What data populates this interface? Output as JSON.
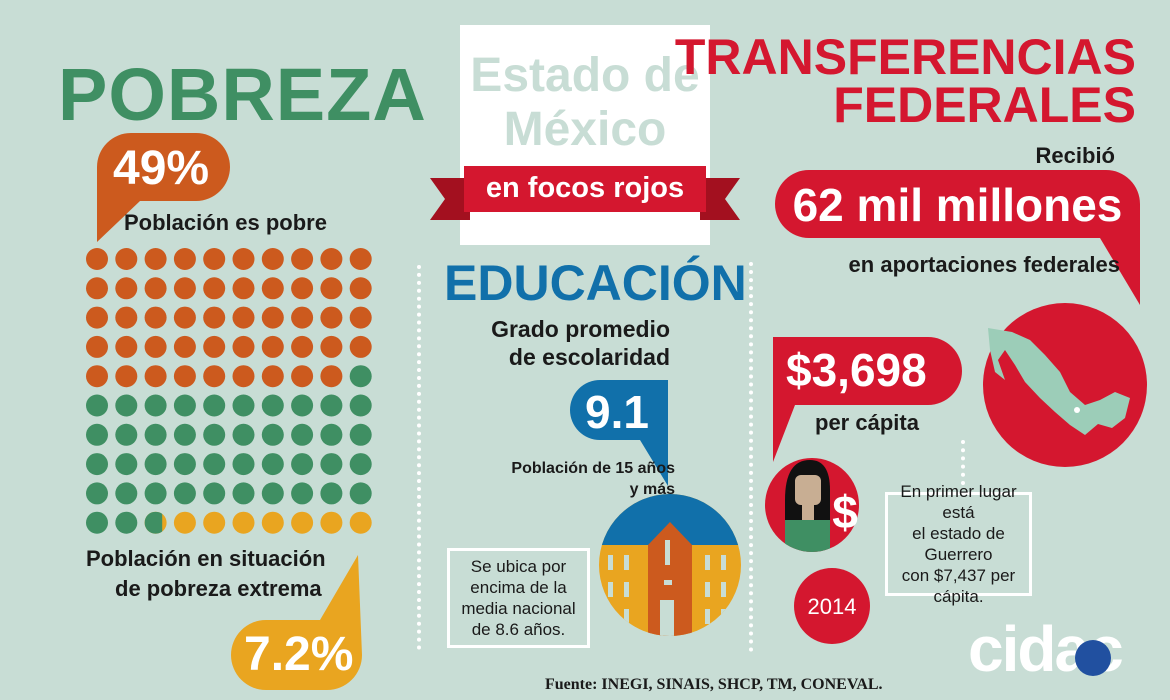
{
  "colors": {
    "background": "#c8ddd5",
    "green": "#3f8f63",
    "orange": "#cc5a1e",
    "yellow": "#e9a520",
    "red": "#d4172f",
    "blue": "#1170aa"
  },
  "pobreza": {
    "title": "POBREZA",
    "poor_pct": "49%",
    "poor_label": "Población es pobre",
    "extreme_label_1": "Población en situación",
    "extreme_label_2": "de pobreza extrema",
    "extreme_pct": "7.2%",
    "dot_grid": {
      "total": 100,
      "poor": 49,
      "extreme": 7.2
    }
  },
  "header": {
    "title_1": "Estado de",
    "title_2": "México",
    "ribbon": "en focos rojos"
  },
  "educacion": {
    "title": "EDUCACIÓN",
    "subtitle_1": "Grado promedio",
    "subtitle_2": "de escolaridad",
    "value": "9.1",
    "note_1": "Población de 15 años",
    "note_2": "y más",
    "box": [
      "Se ubica por",
      "encima de la",
      "media nacional",
      "de 8.6 años."
    ]
  },
  "transferencias": {
    "title_1": "TRANSFERENCIAS",
    "title_2": "FEDERALES",
    "received": "Recibió",
    "amount": "62 mil millones",
    "amount_label": "en aportaciones federales",
    "per_capita_value": "$3,698",
    "per_capita_label": "per cápita",
    "year": "2014",
    "box": [
      "En primer lugar está",
      "el estado de Guerrero",
      "con $7,437 per",
      "cápita."
    ]
  },
  "logo": "cidac",
  "source": "Fuente: INEGI, SINAIS, SHCP, TM, CONEVAL."
}
